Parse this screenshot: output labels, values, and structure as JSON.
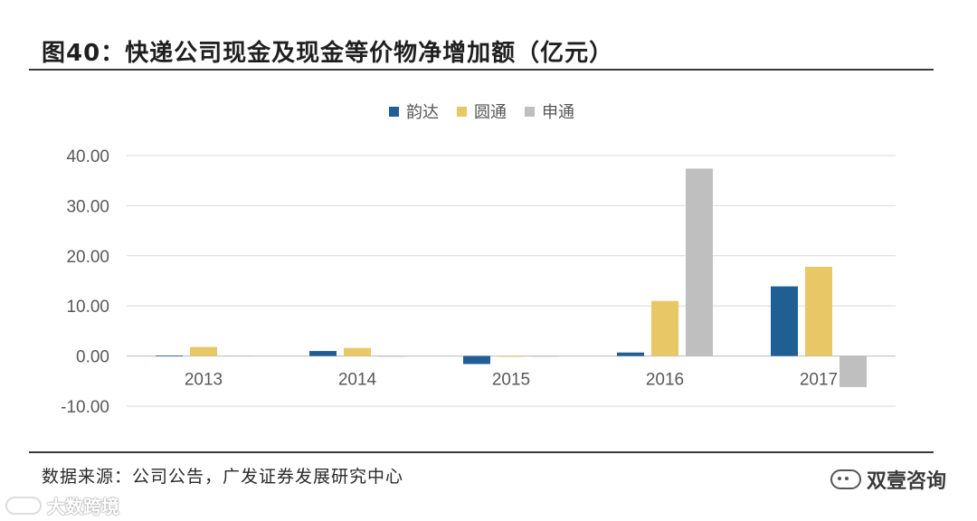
{
  "title": "图40：快递公司现金及现金等价物净增加额（亿元）",
  "source": "数据来源：公司公告，广发证券发展研究中心",
  "watermark_right": "双壹咨询",
  "watermark_left": "大数跨境",
  "colors": {
    "yunda": "#1f5f94",
    "yuantong": "#e8c766",
    "shentong": "#bfbfbf",
    "grid": "#d9d9d9",
    "axis_text": "#595959"
  },
  "chart_data": {
    "type": "bar",
    "categories": [
      "2013",
      "2014",
      "2015",
      "2016",
      "2017"
    ],
    "series": [
      {
        "name": "韵达",
        "values": [
          0.1,
          1.0,
          -1.6,
          0.7,
          13.9
        ]
      },
      {
        "name": "圆通",
        "values": [
          1.8,
          1.6,
          0.0,
          11.0,
          17.8
        ]
      },
      {
        "name": "申通",
        "values": [
          0.1,
          0.0,
          0.0,
          37.4,
          -6.2
        ]
      }
    ],
    "ylim": [
      -10,
      40
    ],
    "yticks": [
      "40.00",
      "30.00",
      "20.00",
      "10.00",
      "0.00",
      "-10.00"
    ],
    "grid": true,
    "legend_position": "top-center"
  }
}
